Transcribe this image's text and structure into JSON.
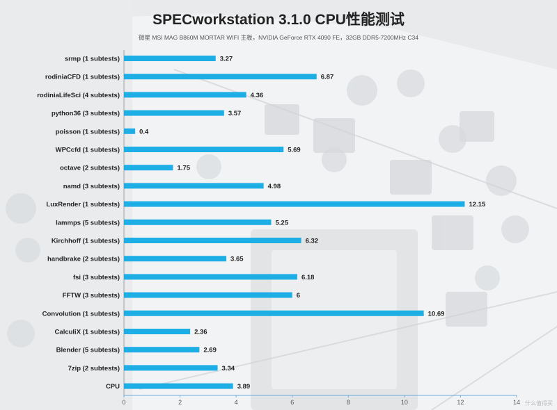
{
  "chart_data": {
    "type": "bar",
    "orientation": "horizontal",
    "title": "SPECworkstation 3.1.0 CPU性能测试",
    "subtitle": "微星 MSI MAG B860M MORTAR WIFI 主板，NVIDIA GeForce RTX 4090 FE，32GB DDR5-7200MHz C34",
    "categories": [
      "srmp (1 subtests)",
      "rodiniaCFD (1 subtests)",
      "rodiniaLifeSci (4 subtests)",
      "python36 (3 subtests)",
      "poisson (1 subtests)",
      "WPCcfd (1 subtests)",
      "octave (2 subtests)",
      "namd (3 subtests)",
      "LuxRender (1 subtests)",
      "lammps (5 subtests)",
      "Kirchhoff (1 subtests)",
      "handbrake (2 subtests)",
      "fsi (3 subtests)",
      "FFTW (3 subtests)",
      "Convolution (1 subtests)",
      "CalculiX (1 subtests)",
      "Blender (5 subtests)",
      "7zip (2 subtests)",
      "CPU"
    ],
    "values": [
      3.27,
      6.87,
      4.36,
      3.57,
      0.4,
      5.69,
      1.75,
      4.98,
      12.15,
      5.25,
      6.32,
      3.65,
      6.18,
      6,
      10.69,
      2.36,
      2.69,
      3.34,
      3.89
    ],
    "value_labels": [
      "3.27",
      "6.87",
      "4.36",
      "3.57",
      "0.4",
      "5.69",
      "1.75",
      "4.98",
      "12.15",
      "5.25",
      "6.32",
      "3.65",
      "6.18",
      "6",
      "10.69",
      "2.36",
      "2.69",
      "3.34",
      "3.89"
    ],
    "xlim": [
      0,
      14
    ],
    "x_ticks": [
      "0",
      "2",
      "4",
      "6",
      "8",
      "10",
      "12",
      "14"
    ],
    "bar_color": "#1eaee6",
    "grid": false,
    "legend": "none"
  },
  "watermark": "什么值得买"
}
